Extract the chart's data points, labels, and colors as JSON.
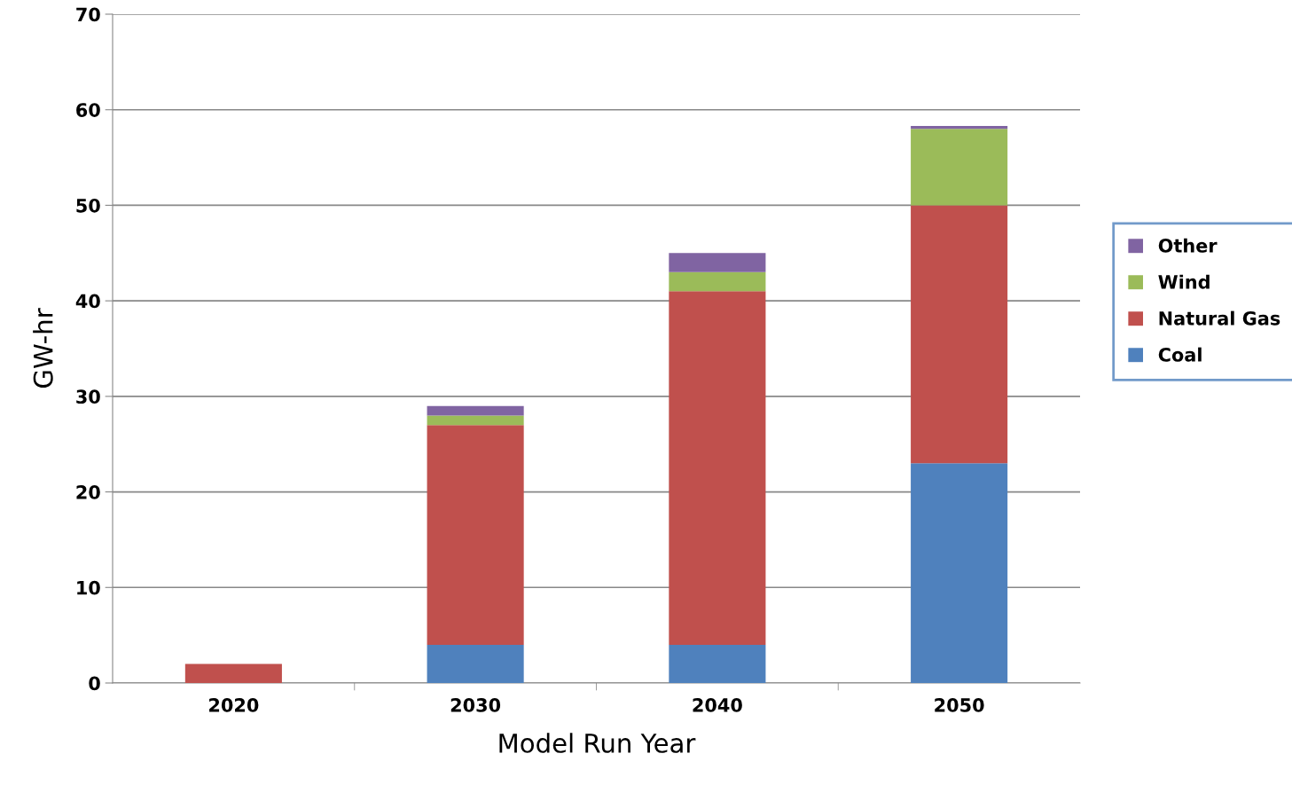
{
  "chart_data": {
    "type": "bar",
    "stacked": true,
    "xlabel": "Model Run Year",
    "ylabel": "GW-hr",
    "categories": [
      "2020",
      "2030",
      "2040",
      "2050"
    ],
    "series": [
      {
        "name": "Coal",
        "color": "#4f81bd",
        "values": [
          0,
          4,
          4,
          23
        ]
      },
      {
        "name": "Natural Gas",
        "color": "#c0504d",
        "values": [
          2,
          23,
          37,
          27
        ]
      },
      {
        "name": "Wind",
        "color": "#9bbb59",
        "values": [
          0,
          1,
          2,
          8
        ]
      },
      {
        "name": "Other",
        "color": "#8064a2",
        "values": [
          0,
          1,
          2,
          0.3
        ]
      }
    ],
    "ylim": [
      0,
      70
    ],
    "yticks": [
      0,
      10,
      20,
      30,
      40,
      50,
      60,
      70
    ],
    "grid": "y",
    "legend": "right"
  }
}
